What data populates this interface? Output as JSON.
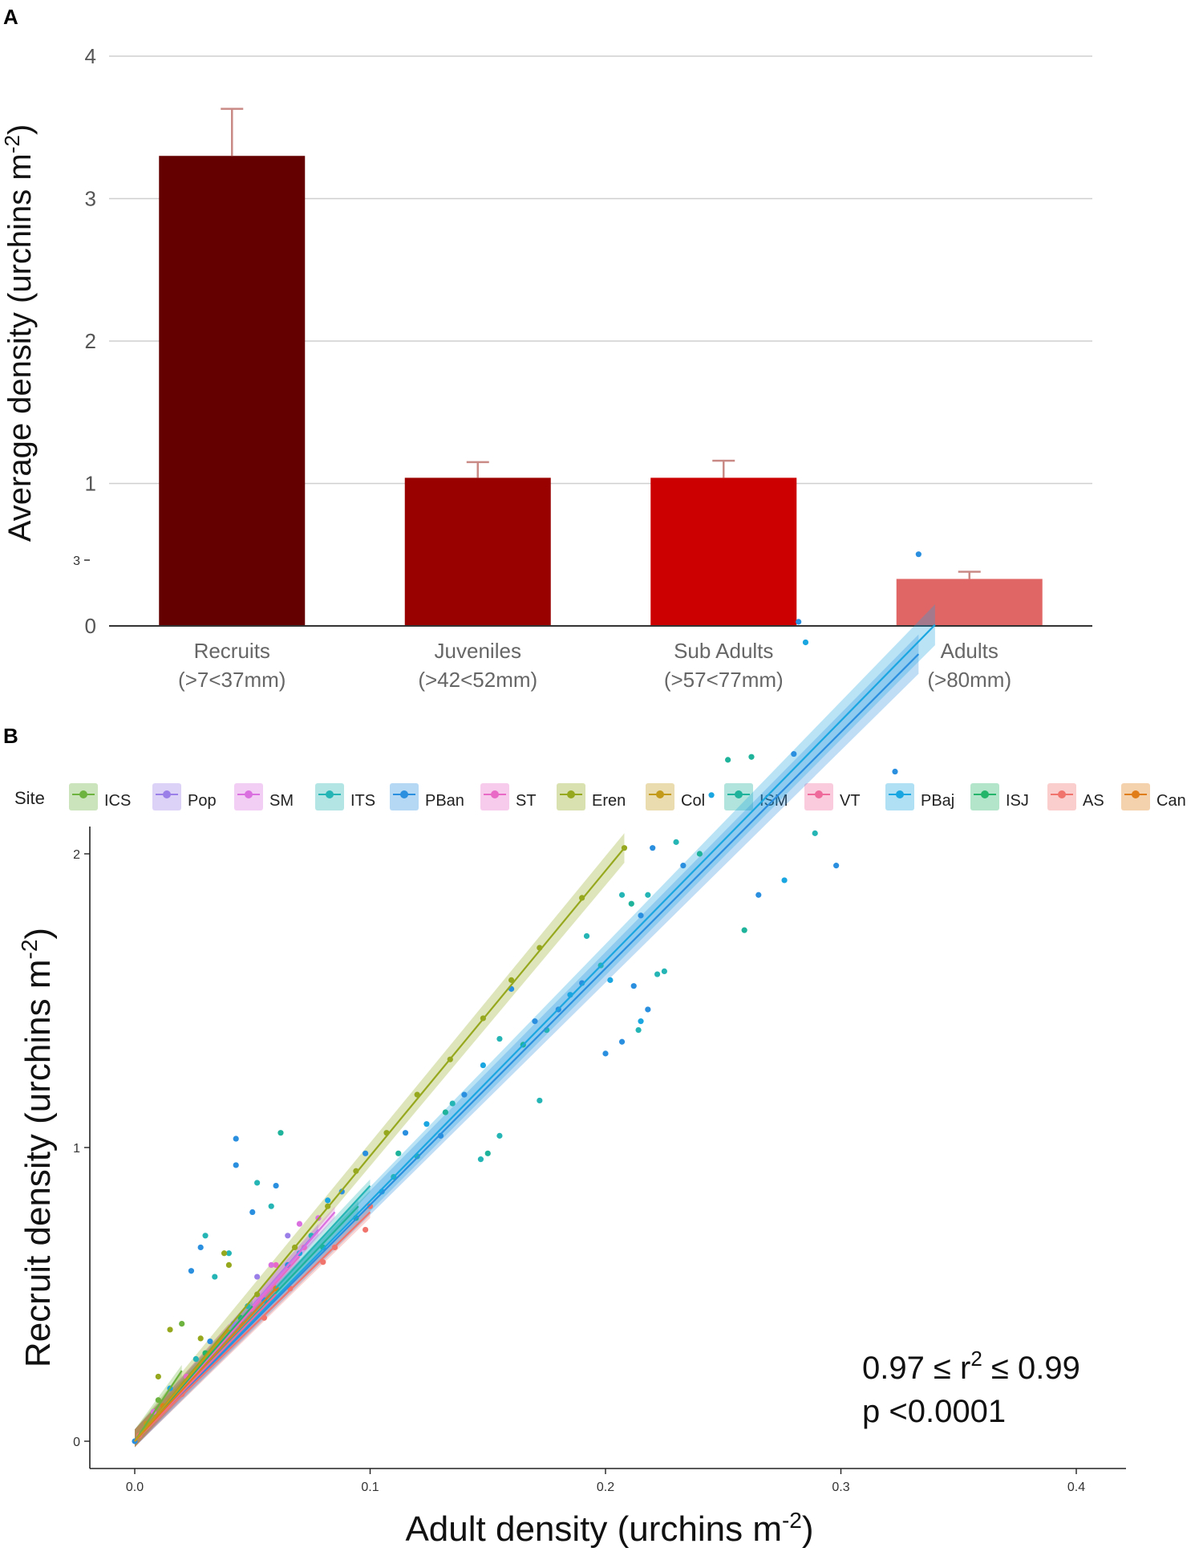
{
  "panels": {
    "a": {
      "letter": "A"
    },
    "b": {
      "letter": "B"
    }
  },
  "chart_data": [
    {
      "type": "bar",
      "panel": "A",
      "ylabel": "Average density (urchins m",
      "ylabel_sup": "-2",
      "ylabel_close": ")",
      "ylim": [
        0,
        4
      ],
      "yticks": [
        0,
        1,
        2,
        3,
        4
      ],
      "grid": true,
      "categories": [
        {
          "name": "Recruits",
          "range": "(>7<37mm)"
        },
        {
          "name": "Juveniles",
          "range": "(>42<52mm)"
        },
        {
          "name": "Sub Adults",
          "range": "(>57<77mm)"
        },
        {
          "name": "Adults",
          "range": "(>80mm)"
        }
      ],
      "values": [
        3.3,
        1.04,
        1.04,
        0.33
      ],
      "error_upper": [
        3.63,
        1.15,
        1.16,
        0.38
      ],
      "colors": [
        "#640000",
        "#990000",
        "#CC0000",
        "#E06666"
      ],
      "error_color": "#C98A86"
    },
    {
      "type": "scatter",
      "panel": "B",
      "xlabel": "Adult density (urchins m",
      "xlabel_sup": "-2",
      "xlabel_close": ")",
      "ylabel": "Recruit density (urchins m",
      "ylabel_sup": "-2",
      "ylabel_close": ")",
      "xlim": [
        0,
        0.4
      ],
      "ylim": [
        0,
        3
      ],
      "xticks": [
        "0.0",
        "0.1",
        "0.2",
        "0.3",
        "0.4"
      ],
      "yticks": [
        "0",
        "1",
        "2",
        "3"
      ],
      "grid": false,
      "legend": {
        "title": "Site",
        "placement": "top",
        "entries": [
          {
            "name": "ICS",
            "color": "#6DB33F"
          },
          {
            "name": "Pop",
            "color": "#9B7FE8"
          },
          {
            "name": "SM",
            "color": "#DA6FE0"
          },
          {
            "name": "ITS",
            "color": "#26B5B5"
          },
          {
            "name": "PBan",
            "color": "#2A8FDF"
          },
          {
            "name": "ST",
            "color": "#E869C6"
          },
          {
            "name": "Eren",
            "color": "#96A81E"
          },
          {
            "name": "Col",
            "color": "#C49A1A"
          },
          {
            "name": "ISM",
            "color": "#1EB39A"
          },
          {
            "name": "VT",
            "color": "#EE6A9A"
          },
          {
            "name": "PBaj",
            "color": "#1AA6E0"
          },
          {
            "name": "ISJ",
            "color": "#25B56A"
          },
          {
            "name": "AS",
            "color": "#F0736C"
          },
          {
            "name": "Can",
            "color": "#E07D18"
          }
        ]
      },
      "fits": [
        {
          "site": "Eren",
          "x": [
            0.0,
            0.208
          ],
          "y": [
            0.0,
            2.02
          ]
        },
        {
          "site": "PBaj",
          "x": [
            0.0,
            0.34
          ],
          "y": [
            0.0,
            2.78
          ]
        },
        {
          "site": "PBan",
          "x": [
            0.0,
            0.333
          ],
          "y": [
            0.0,
            2.68
          ]
        },
        {
          "site": "ITS",
          "x": [
            0.0,
            0.1
          ],
          "y": [
            0.0,
            0.87
          ]
        },
        {
          "site": "ISM",
          "x": [
            0.0,
            0.095
          ],
          "y": [
            0.0,
            0.8
          ]
        },
        {
          "site": "AS",
          "x": [
            0.0,
            0.1
          ],
          "y": [
            0.0,
            0.78
          ]
        },
        {
          "site": "ICS",
          "x": [
            0.0,
            0.02
          ],
          "y": [
            0.0,
            0.24
          ]
        },
        {
          "site": "Pop",
          "x": [
            0.0,
            0.078
          ],
          "y": [
            0.0,
            0.72
          ]
        },
        {
          "site": "SM",
          "x": [
            0.0,
            0.085
          ],
          "y": [
            0.0,
            0.78
          ]
        },
        {
          "site": "ST",
          "x": [
            0.0,
            0.07
          ],
          "y": [
            0.0,
            0.63
          ]
        },
        {
          "site": "VT",
          "x": [
            0.0,
            0.06
          ],
          "y": [
            0.0,
            0.5
          ]
        },
        {
          "site": "ISJ",
          "x": [
            0.0,
            0.05
          ],
          "y": [
            0.0,
            0.46
          ]
        },
        {
          "site": "Can",
          "x": [
            0.0,
            0.06
          ],
          "y": [
            0.0,
            0.52
          ]
        },
        {
          "site": "Col",
          "x": [
            0.0,
            0.04
          ],
          "y": [
            0.0,
            0.38
          ]
        }
      ],
      "points": [
        {
          "site": "PBan",
          "x": 0.333,
          "y": 3.02
        },
        {
          "site": "PBaj",
          "x": 0.285,
          "y": 2.72
        },
        {
          "site": "PBan",
          "x": 0.282,
          "y": 2.79
        },
        {
          "site": "PBan",
          "x": 0.28,
          "y": 2.34
        },
        {
          "site": "ISM",
          "x": 0.262,
          "y": 2.33
        },
        {
          "site": "ISM",
          "x": 0.252,
          "y": 2.32
        },
        {
          "site": "PBan",
          "x": 0.323,
          "y": 2.28
        },
        {
          "site": "ITS",
          "x": 0.289,
          "y": 2.07
        },
        {
          "site": "PBan",
          "x": 0.298,
          "y": 1.96
        },
        {
          "site": "PBaj",
          "x": 0.276,
          "y": 1.91
        },
        {
          "site": "PBan",
          "x": 0.265,
          "y": 1.86
        },
        {
          "site": "ISM",
          "x": 0.259,
          "y": 1.74
        },
        {
          "site": "PBaj",
          "x": 0.245,
          "y": 2.2
        },
        {
          "site": "ITS",
          "x": 0.23,
          "y": 2.04
        },
        {
          "site": "PBan",
          "x": 0.22,
          "y": 2.02
        },
        {
          "site": "ITS",
          "x": 0.218,
          "y": 1.86
        },
        {
          "site": "PBan",
          "x": 0.215,
          "y": 1.79
        },
        {
          "site": "ITS",
          "x": 0.207,
          "y": 1.86
        },
        {
          "site": "PBaj",
          "x": 0.202,
          "y": 1.57
        },
        {
          "site": "PBan",
          "x": 0.212,
          "y": 1.55
        },
        {
          "site": "ITS",
          "x": 0.222,
          "y": 1.59
        },
        {
          "site": "PBan",
          "x": 0.218,
          "y": 1.47
        },
        {
          "site": "PBaj",
          "x": 0.215,
          "y": 1.43
        },
        {
          "site": "PBan",
          "x": 0.207,
          "y": 1.36
        },
        {
          "site": "PBan",
          "x": 0.2,
          "y": 1.32
        },
        {
          "site": "ITS",
          "x": 0.214,
          "y": 1.4
        },
        {
          "site": "ITS",
          "x": 0.225,
          "y": 1.6
        },
        {
          "site": "ISM",
          "x": 0.211,
          "y": 1.83
        },
        {
          "site": "PBan",
          "x": 0.19,
          "y": 1.56
        },
        {
          "site": "ITS",
          "x": 0.192,
          "y": 1.72
        },
        {
          "site": "PBan",
          "x": 0.18,
          "y": 1.47
        },
        {
          "site": "ITS",
          "x": 0.175,
          "y": 1.4
        },
        {
          "site": "PBan",
          "x": 0.17,
          "y": 1.43
        },
        {
          "site": "ITS",
          "x": 0.155,
          "y": 1.37
        },
        {
          "site": "ISM",
          "x": 0.165,
          "y": 1.35
        },
        {
          "site": "PBan",
          "x": 0.16,
          "y": 1.54
        },
        {
          "site": "ITS",
          "x": 0.172,
          "y": 1.16
        },
        {
          "site": "ISM",
          "x": 0.15,
          "y": 0.98
        },
        {
          "site": "ITS",
          "x": 0.147,
          "y": 0.96
        },
        {
          "site": "ITS",
          "x": 0.155,
          "y": 1.04
        },
        {
          "site": "PBaj",
          "x": 0.148,
          "y": 1.28
        },
        {
          "site": "PBan",
          "x": 0.14,
          "y": 1.18
        },
        {
          "site": "ISM",
          "x": 0.132,
          "y": 1.12
        },
        {
          "site": "PBan",
          "x": 0.13,
          "y": 1.04
        },
        {
          "site": "ITS",
          "x": 0.12,
          "y": 0.97
        },
        {
          "site": "PBan",
          "x": 0.115,
          "y": 1.05
        },
        {
          "site": "ITS",
          "x": 0.11,
          "y": 0.9
        },
        {
          "site": "PBaj",
          "x": 0.105,
          "y": 0.85
        },
        {
          "site": "PBan",
          "x": 0.098,
          "y": 0.98
        },
        {
          "site": "ISM",
          "x": 0.094,
          "y": 0.76
        },
        {
          "site": "Eren",
          "x": 0.208,
          "y": 2.02
        },
        {
          "site": "Eren",
          "x": 0.19,
          "y": 1.85
        },
        {
          "site": "Eren",
          "x": 0.172,
          "y": 1.68
        },
        {
          "site": "Eren",
          "x": 0.16,
          "y": 1.57
        },
        {
          "site": "Eren",
          "x": 0.148,
          "y": 1.44
        },
        {
          "site": "Eren",
          "x": 0.134,
          "y": 1.3
        },
        {
          "site": "Eren",
          "x": 0.12,
          "y": 1.18
        },
        {
          "site": "Eren",
          "x": 0.107,
          "y": 1.05
        },
        {
          "site": "Eren",
          "x": 0.094,
          "y": 0.92
        },
        {
          "site": "Eren",
          "x": 0.082,
          "y": 0.8
        },
        {
          "site": "Eren",
          "x": 0.068,
          "y": 0.66
        },
        {
          "site": "Eren",
          "x": 0.052,
          "y": 0.5
        },
        {
          "site": "PBan",
          "x": 0.043,
          "y": 1.03
        },
        {
          "site": "ISM",
          "x": 0.062,
          "y": 1.05
        },
        {
          "site": "PBan",
          "x": 0.043,
          "y": 0.94
        },
        {
          "site": "ITS",
          "x": 0.052,
          "y": 0.88
        },
        {
          "site": "PBan",
          "x": 0.06,
          "y": 0.87
        },
        {
          "site": "ITS",
          "x": 0.058,
          "y": 0.8
        },
        {
          "site": "PBan",
          "x": 0.05,
          "y": 0.78
        },
        {
          "site": "ITS",
          "x": 0.03,
          "y": 0.7
        },
        {
          "site": "PBan",
          "x": 0.028,
          "y": 0.66
        },
        {
          "site": "ITS",
          "x": 0.04,
          "y": 0.64
        },
        {
          "site": "Eren",
          "x": 0.038,
          "y": 0.64
        },
        {
          "site": "Eren",
          "x": 0.04,
          "y": 0.6
        },
        {
          "site": "PBan",
          "x": 0.024,
          "y": 0.58
        },
        {
          "site": "ITS",
          "x": 0.034,
          "y": 0.56
        },
        {
          "site": "ICS",
          "x": 0.02,
          "y": 0.4
        },
        {
          "site": "Eren",
          "x": 0.015,
          "y": 0.38
        },
        {
          "site": "Pop",
          "x": 0.065,
          "y": 0.7
        },
        {
          "site": "SM",
          "x": 0.07,
          "y": 0.74
        },
        {
          "site": "SM",
          "x": 0.078,
          "y": 0.76
        },
        {
          "site": "ST",
          "x": 0.06,
          "y": 0.6
        },
        {
          "site": "ST",
          "x": 0.072,
          "y": 0.66
        },
        {
          "site": "AS",
          "x": 0.1,
          "y": 0.8
        },
        {
          "site": "AS",
          "x": 0.098,
          "y": 0.72
        },
        {
          "site": "AS",
          "x": 0.085,
          "y": 0.66
        },
        {
          "site": "AS",
          "x": 0.08,
          "y": 0.61
        },
        {
          "site": "AS",
          "x": 0.066,
          "y": 0.52
        },
        {
          "site": "AS",
          "x": 0.055,
          "y": 0.42
        },
        {
          "site": "Can",
          "x": 0.06,
          "y": 0.52
        },
        {
          "site": "Can",
          "x": 0.045,
          "y": 0.4
        },
        {
          "site": "Col",
          "x": 0.04,
          "y": 0.37
        },
        {
          "site": "VT",
          "x": 0.05,
          "y": 0.45
        },
        {
          "site": "VT",
          "x": 0.035,
          "y": 0.32
        },
        {
          "site": "ISJ",
          "x": 0.045,
          "y": 0.42
        },
        {
          "site": "ISJ",
          "x": 0.03,
          "y": 0.3
        },
        {
          "site": "PBaj",
          "x": 0.082,
          "y": 0.82
        },
        {
          "site": "PBan",
          "x": 0.088,
          "y": 0.85
        },
        {
          "site": "ITS",
          "x": 0.075,
          "y": 0.7
        },
        {
          "site": "PBaj",
          "x": 0.07,
          "y": 0.64
        },
        {
          "site": "PBan",
          "x": 0.065,
          "y": 0.6
        },
        {
          "site": "ISM",
          "x": 0.08,
          "y": 0.66
        },
        {
          "site": "PBan",
          "x": 0.055,
          "y": 0.48
        },
        {
          "site": "ITS",
          "x": 0.048,
          "y": 0.46
        },
        {
          "site": "Pop",
          "x": 0.042,
          "y": 0.4
        },
        {
          "site": "SM",
          "x": 0.038,
          "y": 0.36
        },
        {
          "site": "PBan",
          "x": 0.032,
          "y": 0.34
        },
        {
          "site": "ITS",
          "x": 0.026,
          "y": 0.28
        },
        {
          "site": "ST",
          "x": 0.022,
          "y": 0.22
        },
        {
          "site": "AS",
          "x": 0.02,
          "y": 0.16
        },
        {
          "site": "PBaj",
          "x": 0.015,
          "y": 0.18
        },
        {
          "site": "Can",
          "x": 0.012,
          "y": 0.12
        },
        {
          "site": "ICS",
          "x": 0.01,
          "y": 0.14
        },
        {
          "site": "SM",
          "x": 0.008,
          "y": 0.1
        },
        {
          "site": "Col",
          "x": 0.005,
          "y": 0.06
        },
        {
          "site": "AS",
          "x": 0.002,
          "y": 0.02
        },
        {
          "site": "PBan",
          "x": 0.0,
          "y": 0.0
        },
        {
          "site": "Eren",
          "x": 0.028,
          "y": 0.35
        },
        {
          "site": "Eren",
          "x": 0.01,
          "y": 0.22
        },
        {
          "site": "Pop",
          "x": 0.052,
          "y": 0.56
        },
        {
          "site": "SM",
          "x": 0.058,
          "y": 0.6
        },
        {
          "site": "ISM",
          "x": 0.112,
          "y": 0.98
        },
        {
          "site": "PBaj",
          "x": 0.124,
          "y": 1.08
        },
        {
          "site": "ITS",
          "x": 0.135,
          "y": 1.15
        },
        {
          "site": "PBaj",
          "x": 0.185,
          "y": 1.52
        },
        {
          "site": "ITS",
          "x": 0.198,
          "y": 1.62
        },
        {
          "site": "PBan",
          "x": 0.233,
          "y": 1.96
        },
        {
          "site": "ISM",
          "x": 0.24,
          "y": 2.0
        }
      ],
      "annotation": {
        "line1_pre": "0.97 ≤ r",
        "line1_sup": "2",
        "line1_post": " ≤ 0.99",
        "line2": "p <0.0001"
      }
    }
  ]
}
